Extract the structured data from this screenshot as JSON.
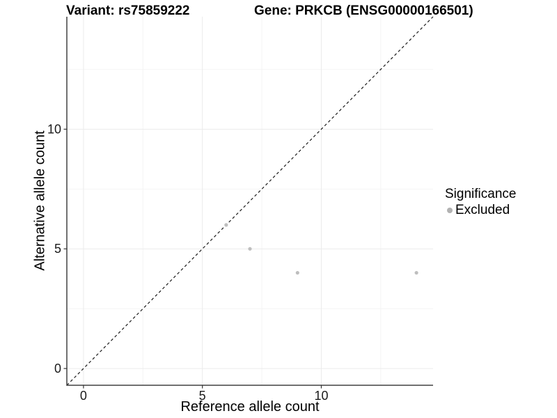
{
  "titles": {
    "variant": "Variant: rs75859222",
    "gene": "Gene: PRKCB (ENSG00000166501)"
  },
  "chart_data": {
    "type": "scatter",
    "title_left": "Variant: rs75859222",
    "title_right": "Gene: PRKCB (ENSG00000166501)",
    "xlabel": "Reference allele count",
    "ylabel": "Alternative allele count",
    "xlim": [
      -0.7,
      14.7
    ],
    "ylim": [
      -0.7,
      14.7
    ],
    "x_ticks": [
      0,
      5,
      10
    ],
    "y_ticks": [
      0,
      5,
      10
    ],
    "x_minor_gridlines": [
      2.5,
      7.5,
      12.5
    ],
    "y_minor_gridlines": [
      2.5,
      7.5,
      12.5
    ],
    "grid": "major and minor, light gray on white",
    "series": [
      {
        "name": "Excluded",
        "color": "#bebebe",
        "marker": "circle",
        "points": [
          [
            6,
            6
          ],
          [
            7,
            5
          ],
          [
            9,
            4
          ],
          [
            14,
            4
          ]
        ]
      }
    ],
    "reference_line": {
      "type": "identity",
      "linestyle": "dashed",
      "color": "#1a1a1a",
      "from": [
        -0.7,
        -0.7
      ],
      "to": [
        14.7,
        14.7
      ]
    },
    "legend": {
      "title": "Significance",
      "position": "right",
      "entries": [
        {
          "label": "Excluded",
          "color": "#b2b2b2"
        }
      ]
    }
  },
  "colors": {
    "background": "#ffffff",
    "grid_major": "#ebebeb",
    "grid_minor": "#f4f4f4",
    "axis_line": "#404040",
    "tick_mark": "#333333",
    "tick_text": "#1a1a1a",
    "point": "#bebebe"
  }
}
